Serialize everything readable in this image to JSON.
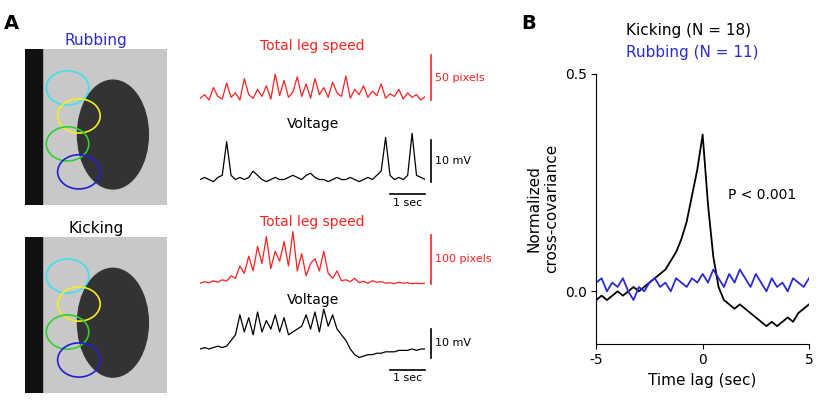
{
  "panel_labels": [
    "A",
    "B"
  ],
  "images": [
    {
      "title": "Rubbing",
      "color": "#2b2bd6"
    },
    {
      "title": "Kicking",
      "color": "#000000"
    }
  ],
  "chart_data": [
    {
      "type": "line",
      "title": "Total leg speed",
      "color": "#ff2020",
      "tick_labels": false,
      "sample_interval": 0.125,
      "values": [
        8,
        12,
        6,
        20,
        10,
        7,
        25,
        9,
        14,
        6,
        30,
        12,
        8,
        18,
        10,
        22,
        7,
        35,
        11,
        28,
        9,
        15,
        32,
        10,
        24,
        8,
        30,
        12,
        20,
        9,
        26,
        14,
        10,
        33,
        8,
        18,
        12,
        22,
        9,
        16,
        11,
        24,
        8,
        13,
        10,
        18,
        7,
        14,
        9,
        12,
        6,
        10
      ],
      "scale_bar": {
        "value": 50,
        "label": "50 pixels"
      }
    },
    {
      "type": "line",
      "title": "Voltage",
      "color": "#000000",
      "tick_labels": false,
      "sample_interval": 0.125,
      "values": [
        0,
        0.5,
        0,
        -0.5,
        0.5,
        1,
        9,
        1,
        0,
        0.5,
        0,
        0.5,
        2,
        1,
        0,
        -0.5,
        0,
        0.5,
        0,
        0,
        0.5,
        1,
        0.5,
        0,
        1,
        1.5,
        0.5,
        0,
        0,
        -0.5,
        0,
        0.5,
        0,
        0,
        0.5,
        0,
        -0.5,
        0,
        0.5,
        0,
        1,
        2,
        10,
        1,
        0,
        0.5,
        0,
        1,
        11,
        1,
        0.5,
        0
      ],
      "scale_bar": {
        "value": 10,
        "label": "10 mV"
      },
      "time_bar": {
        "value": 1,
        "label": "1 sec"
      }
    },
    {
      "type": "line",
      "title": "Total leg speed",
      "color": "#ff2020",
      "tick_labels": false,
      "sample_interval": 0.125,
      "values": [
        5,
        8,
        6,
        10,
        7,
        12,
        9,
        20,
        15,
        40,
        25,
        60,
        30,
        80,
        45,
        100,
        35,
        70,
        50,
        90,
        40,
        110,
        30,
        65,
        20,
        45,
        55,
        30,
        70,
        25,
        15,
        30,
        10,
        12,
        8,
        15,
        6,
        9,
        5,
        10,
        7,
        8,
        5,
        6,
        4,
        7,
        5,
        6,
        4,
        5,
        4,
        5
      ],
      "scale_bar": {
        "value": 100,
        "label": "100 pixels"
      }
    },
    {
      "type": "line",
      "title": "Voltage",
      "color": "#000000",
      "tick_labels": false,
      "sample_interval": 0.125,
      "values": [
        0,
        0.5,
        0,
        0.5,
        1,
        0.5,
        1,
        3,
        5,
        12,
        6,
        11,
        5,
        13,
        6,
        10,
        7,
        12,
        6,
        11,
        5,
        6,
        7,
        8,
        12,
        7,
        13,
        6,
        14,
        8,
        12,
        7,
        5,
        3,
        0,
        -2,
        -3,
        -2.5,
        -2,
        -2,
        -1.5,
        -1.5,
        -1,
        -1,
        -1,
        -0.5,
        -0.5,
        -0.5,
        0,
        -0.5,
        0,
        0
      ],
      "scale_bar": {
        "value": 10,
        "label": "10 mV"
      },
      "time_bar": {
        "value": 1,
        "label": "1 sec"
      }
    },
    {
      "type": "line",
      "xlabel": "Time lag (sec)",
      "ylabel": "Normalized\ncross-covariance",
      "x": [
        -5,
        -4.75,
        -4.5,
        -4.25,
        -4,
        -3.75,
        -3.5,
        -3.25,
        -3,
        -2.75,
        -2.5,
        -2.25,
        -2,
        -1.75,
        -1.5,
        -1.25,
        -1,
        -0.75,
        -0.5,
        -0.25,
        0,
        0.25,
        0.5,
        0.75,
        1,
        1.25,
        1.5,
        1.75,
        2,
        2.25,
        2.5,
        2.75,
        3,
        3.25,
        3.5,
        3.75,
        4,
        4.25,
        4.5,
        4.75,
        5
      ],
      "series": [
        {
          "name": "Kicking (N = 18)",
          "color": "#000000",
          "values": [
            -0.02,
            -0.01,
            -0.02,
            -0.01,
            0.0,
            -0.01,
            0.0,
            0.01,
            0.0,
            0.01,
            0.02,
            0.03,
            0.04,
            0.05,
            0.07,
            0.09,
            0.12,
            0.16,
            0.22,
            0.28,
            0.36,
            0.2,
            0.08,
            0.01,
            -0.02,
            -0.03,
            -0.04,
            -0.03,
            -0.04,
            -0.05,
            -0.06,
            -0.07,
            -0.08,
            -0.07,
            -0.08,
            -0.07,
            -0.06,
            -0.07,
            -0.05,
            -0.04,
            -0.03
          ]
        },
        {
          "name": "Rubbing (N = 11)",
          "color": "#2b2bd6",
          "values": [
            0.02,
            0.03,
            0.0,
            0.02,
            0.01,
            0.03,
            0.0,
            -0.02,
            0.01,
            0.0,
            0.02,
            0.03,
            0.01,
            0.02,
            0.0,
            0.03,
            0.02,
            0.01,
            0.03,
            0.02,
            0.04,
            0.02,
            0.05,
            0.03,
            0.01,
            0.04,
            0.02,
            0.05,
            0.03,
            0.01,
            0.04,
            0.02,
            0.0,
            0.03,
            0.01,
            0.02,
            0.0,
            0.03,
            0.02,
            0.01,
            0.03
          ]
        }
      ],
      "xlim": [
        -5,
        5
      ],
      "ylim": [
        -0.12,
        0.5
      ],
      "xticks": [
        -5,
        0,
        5
      ],
      "yticks": [
        {
          "value": 0.0,
          "label": "0.0"
        },
        {
          "value": 0.5,
          "label": "0.5"
        }
      ],
      "legend": "upper center",
      "annotations": [
        "P < 0.001"
      ]
    }
  ]
}
